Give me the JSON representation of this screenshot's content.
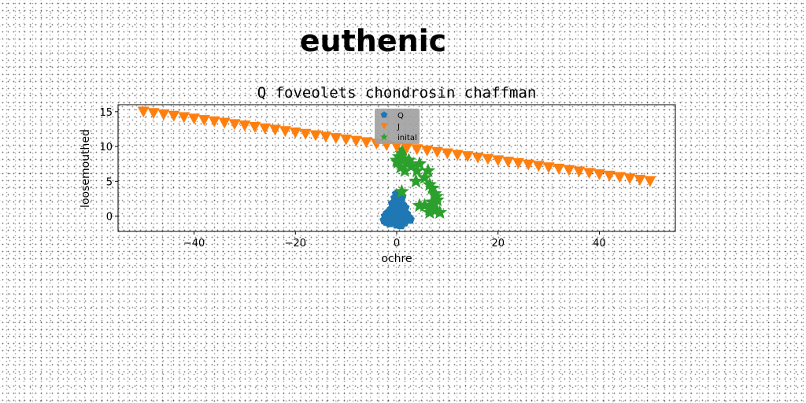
{
  "figure": {
    "suptitle": "euthenic"
  },
  "colors": {
    "Q": "#1f77b4",
    "J": "#ff7f0e",
    "inital": "#2ca02c",
    "legend_bg": "#a0a0a0"
  },
  "chart_data": {
    "type": "scatter",
    "title": "Q foveolets chondrosin chaffman",
    "xlabel": "ochre",
    "ylabel": "loosemouthed",
    "xlim": [
      -55,
      55
    ],
    "ylim": [
      -2.2,
      16
    ],
    "xticks": [
      -40,
      -20,
      0,
      20,
      40
    ],
    "yticks": [
      0,
      5,
      10,
      15
    ],
    "xtick_labels": [
      "−40",
      "−20",
      "0",
      "20",
      "40"
    ],
    "ytick_labels": [
      "0",
      "5",
      "10",
      "15"
    ],
    "grid": false,
    "legend": {
      "placement": "top-center",
      "entries": [
        "Q",
        "J",
        "inital"
      ]
    },
    "series": [
      {
        "name": "Q",
        "marker": "pentagon",
        "x": [
          -2.0,
          -1.5,
          -1.0,
          -0.5,
          0.0,
          0.5,
          1.0,
          1.5,
          2.0,
          -1.8,
          -1.2,
          -0.6,
          0.3,
          0.9,
          1.4,
          1.9,
          -0.8,
          0.2,
          1.1,
          -0.3,
          0.6,
          1.6,
          -1.4,
          0.0,
          0.8,
          -2.2,
          2.3,
          -0.4,
          0.4,
          1.2,
          -1.0,
          0.0,
          1.0,
          0.5,
          -0.5,
          2.6,
          -2.4,
          0.0
        ],
        "y": [
          -0.8,
          -0.5,
          -0.2,
          0.0,
          0.2,
          -0.3,
          -0.6,
          -0.9,
          -0.4,
          0.4,
          0.8,
          1.2,
          1.5,
          1.0,
          0.5,
          0.3,
          1.8,
          2.3,
          1.6,
          2.6,
          2.0,
          1.2,
          -1.0,
          -1.2,
          -1.3,
          0.0,
          -0.2,
          0.5,
          0.8,
          0.2,
          1.0,
          3.2,
          2.8,
          -0.6,
          -0.2,
          -0.5,
          -0.6,
          1.6
        ]
      },
      {
        "name": "J",
        "marker": "triangle-down",
        "x": [
          -50.0,
          -48.0,
          -46.0,
          -44.0,
          -42.0,
          -40.0,
          -38.0,
          -36.0,
          -34.0,
          -32.0,
          -30.0,
          -28.0,
          -26.0,
          -24.0,
          -22.0,
          -20.0,
          -18.0,
          -16.0,
          -14.0,
          -12.0,
          -10.0,
          -8.0,
          -6.0,
          -4.0,
          -2.0,
          0.0,
          2.0,
          4.0,
          6.0,
          8.0,
          10.0,
          12.0,
          14.0,
          16.0,
          18.0,
          20.0,
          22.0,
          24.0,
          26.0,
          28.0,
          30.0,
          32.0,
          34.0,
          36.0,
          38.0,
          40.0,
          42.0,
          44.0,
          46.0,
          48.0,
          50.0
        ],
        "y": [
          15.0,
          14.8,
          14.6,
          14.4,
          14.2,
          14.0,
          13.8,
          13.6,
          13.4,
          13.2,
          13.0,
          12.8,
          12.6,
          12.4,
          12.2,
          12.0,
          11.8,
          11.6,
          11.4,
          11.2,
          11.0,
          10.8,
          10.6,
          10.4,
          10.2,
          10.0,
          9.8,
          9.6,
          9.4,
          9.2,
          9.0,
          8.8,
          8.6,
          8.4,
          8.2,
          8.0,
          7.8,
          7.6,
          7.4,
          7.2,
          7.0,
          6.8,
          6.6,
          6.4,
          6.2,
          6.0,
          5.8,
          5.6,
          5.4,
          5.2,
          5.0
        ]
      },
      {
        "name": "inital",
        "marker": "star",
        "x": [
          0.0,
          0.5,
          1.0,
          1.5,
          2.0,
          0.8,
          1.6,
          2.4,
          1.2,
          0.2,
          3.0,
          4.0,
          4.5,
          5.5,
          6.5,
          7.0,
          7.5,
          7.8,
          8.0,
          7.5,
          6.5,
          5.5,
          4.5,
          6.5,
          7.5,
          8.5,
          7.0,
          3.8,
          6.2,
          1.0
        ],
        "y": [
          8.0,
          8.5,
          9.0,
          8.2,
          7.5,
          7.0,
          6.5,
          8.0,
          9.5,
          7.7,
          7.2,
          6.5,
          7.5,
          5.5,
          4.5,
          4.0,
          3.2,
          2.8,
          2.3,
          1.8,
          1.0,
          1.5,
          1.5,
          0.5,
          0.8,
          0.5,
          2.0,
          5.0,
          6.5,
          3.5
        ]
      }
    ]
  }
}
